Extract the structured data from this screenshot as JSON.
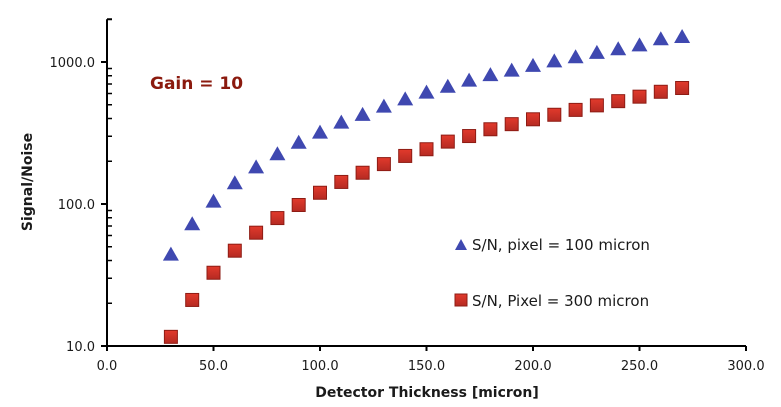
{
  "chart_data": {
    "type": "scatter",
    "title": "",
    "xlabel": "Detector Thickness [micron]",
    "ylabel": "Signal/Noise",
    "xlim": [
      0,
      300
    ],
    "ylim": [
      10,
      2000
    ],
    "yscale": "log",
    "grid": false,
    "x_ticks": [
      0,
      50,
      100,
      150,
      200,
      250,
      300
    ],
    "x_tick_labels": [
      "0.0",
      "50.0",
      "100.0",
      "150.0",
      "200.0",
      "250.0",
      "300.0"
    ],
    "y_ticks": [
      10,
      100,
      1000
    ],
    "y_tick_labels": [
      "10.0",
      "100.0",
      "1000.0"
    ],
    "annotations": [
      {
        "text": "Gain = 10",
        "color": "#8b1a0e",
        "position": "top-left"
      }
    ],
    "legend_position": "bottom-right",
    "x": [
      30,
      40,
      50,
      60,
      70,
      80,
      90,
      100,
      110,
      120,
      130,
      140,
      150,
      160,
      170,
      180,
      190,
      200,
      210,
      220,
      230,
      240,
      250,
      260,
      270
    ],
    "series": [
      {
        "name": "S/N, pixel = 100 micron",
        "marker": "triangle",
        "color": "#3f48b0",
        "values": [
          44,
          72,
          104,
          140,
          181,
          224,
          270,
          318,
          374,
          424,
          485,
          546,
          608,
          670,
          739,
          809,
          870,
          940,
          1010,
          1080,
          1160,
          1230,
          1310,
          1445,
          1500
        ]
      },
      {
        "name": "S/N, Pixel = 300 micron",
        "marker": "square",
        "color": "#c8281e",
        "values": [
          11.6,
          21.1,
          32.8,
          46.9,
          62.8,
          79.6,
          98.4,
          120,
          143,
          166,
          191,
          218,
          243,
          275,
          301,
          336,
          365,
          395,
          425,
          460,
          495,
          530,
          570,
          617,
          656
        ]
      }
    ]
  }
}
